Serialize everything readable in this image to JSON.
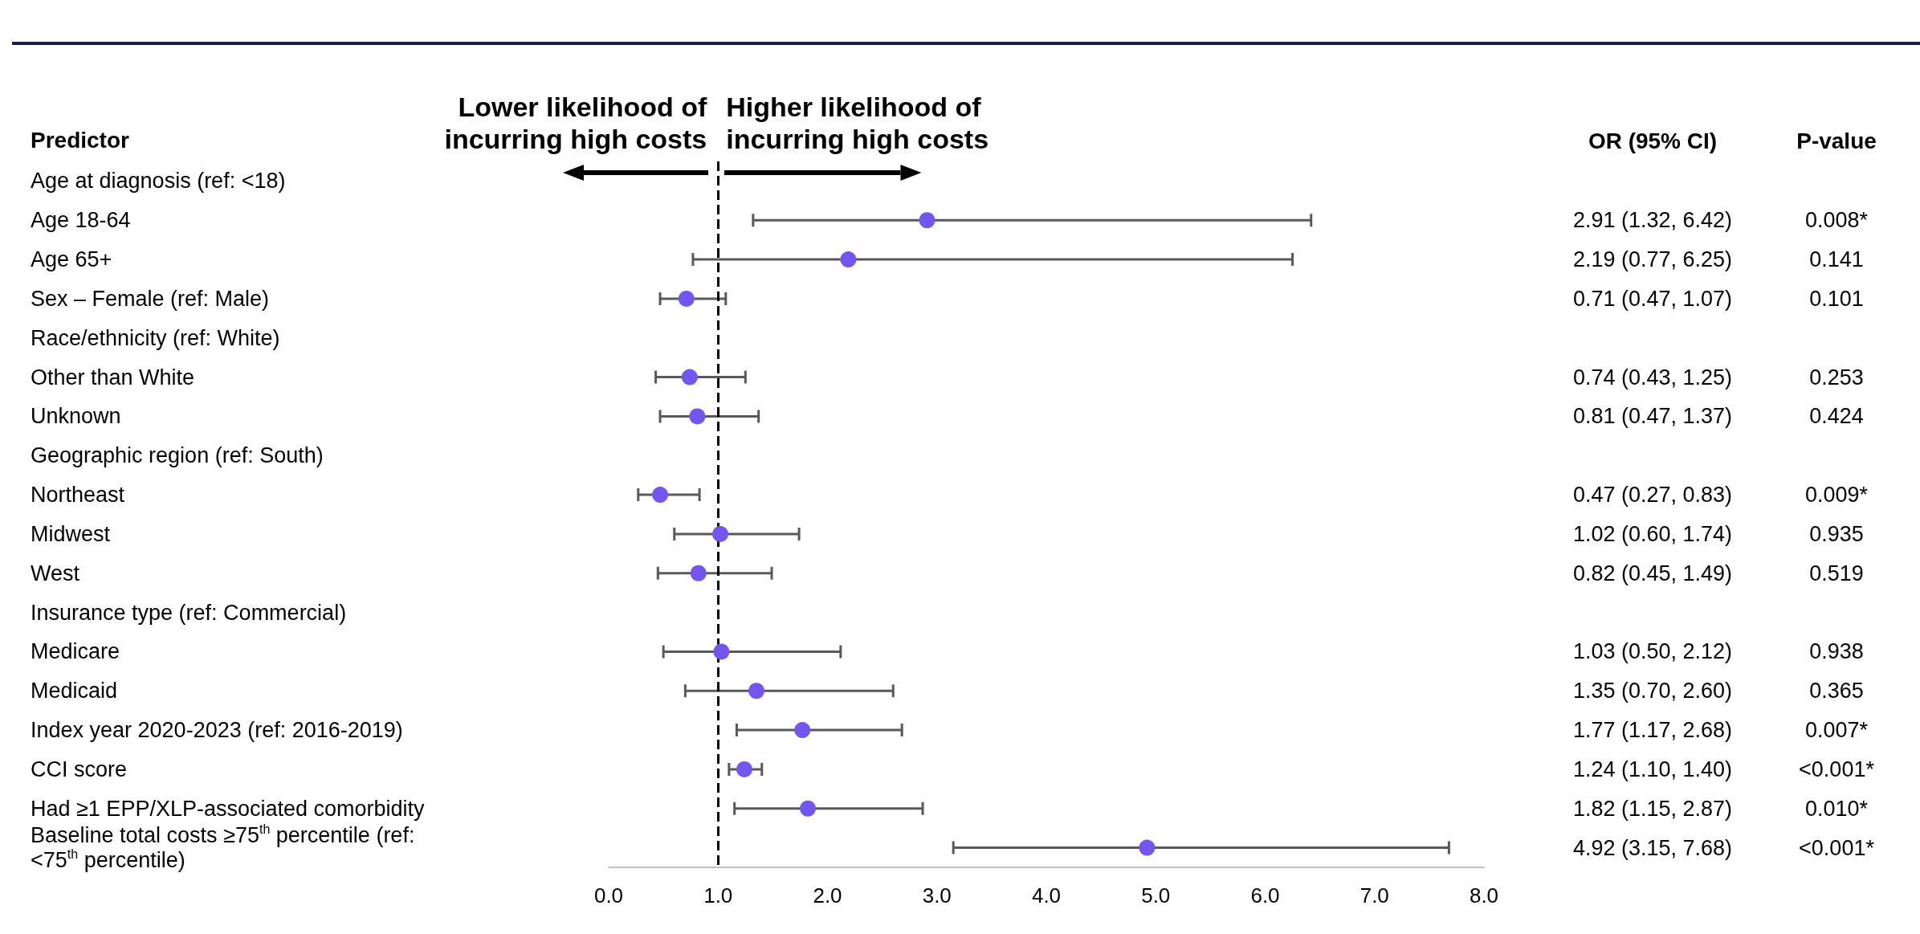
{
  "chart_data": {
    "type": "scatter",
    "orientation": "horizontal",
    "marker": "circle",
    "ylabel": "Predictor",
    "categories": [
      "Age at diagnosis (ref: <18)",
      "Age 18-64",
      "Age 65+",
      "Sex – Female (ref: Male)",
      "Race/ethnicity (ref: White)",
      "Other than White",
      "Unknown",
      "Geographic region (ref: South)",
      "Northeast",
      "Midwest",
      "West",
      "Insurance type (ref: Commercial)",
      "Medicare",
      "Medicaid",
      "Index year 2020-2023 (ref: 2016-2019)",
      "CCI score",
      "Had ≥1 EPP/XLP-associated comorbidity",
      "Baseline total costs ≥75$^{th}$ percentile (ref: <75$^{th}$ percentile)"
    ],
    "series": [
      {
        "color": "#7356f0",
        "values": [
          null,
          2.91,
          2.19,
          0.71,
          null,
          0.74,
          0.81,
          null,
          0.47,
          1.02,
          0.82,
          null,
          1.03,
          1.35,
          1.77,
          1.24,
          1.82,
          4.92
        ],
        "errors": [
          null,
          [
            1.32,
            6.42
          ],
          [
            0.77,
            6.25
          ],
          [
            0.47,
            1.07
          ],
          null,
          [
            0.43,
            1.25
          ],
          [
            0.47,
            1.37
          ],
          null,
          [
            0.27,
            0.83
          ],
          [
            0.6,
            1.74
          ],
          [
            0.45,
            1.49
          ],
          null,
          [
            0.5,
            2.12
          ],
          [
            0.7,
            2.6
          ],
          [
            1.17,
            2.68
          ],
          [
            1.1,
            1.4
          ],
          [
            1.15,
            2.87
          ],
          [
            3.15,
            7.68
          ]
        ],
        "value_labels": [
          null,
          "2.91 (1.32, 6.42)",
          "2.19 (0.77, 6.25)",
          "0.71 (0.47, 1.07)",
          null,
          "0.74 (0.43, 1.25)",
          "0.81 (0.47, 1.37)",
          null,
          "0.47 (0.27, 0.83)",
          "1.02 (0.60, 1.74)",
          "0.82 (0.45, 1.49)",
          null,
          "1.03 (0.50, 2.12)",
          "1.35 (0.70, 2.60)",
          "1.77 (1.17, 2.68)",
          "1.24 (1.10, 1.40)",
          "1.82 (1.15, 2.87)",
          "4.92 (3.15, 7.68)"
        ]
      }
    ],
    "xlim": [
      0,
      8
    ],
    "xticks": [
      {
        "value": 0,
        "label": "0.0"
      },
      {
        "value": 1,
        "label": "1.0"
      },
      {
        "value": 2,
        "label": "2.0"
      },
      {
        "value": 3,
        "label": "3.0"
      },
      {
        "value": 4,
        "label": "4.0"
      },
      {
        "value": 5,
        "label": "5.0"
      },
      {
        "value": 6,
        "label": "6.0"
      },
      {
        "value": 7,
        "label": "7.0"
      },
      {
        "value": 8,
        "label": "8.0"
      }
    ],
    "grid": false,
    "ref_lines": [
      {
        "axis": "x",
        "value": 1,
        "color": "#000000",
        "line_style": "dashed"
      }
    ],
    "annotations": [
      "Lower likelihood of incurring high costs",
      "Higher likelihood of incurring high costs",
      "OR (95% CI)",
      "P-value",
      "0.008*",
      "0.141",
      "0.101",
      "0.253",
      "0.424",
      "0.009*",
      "0.935",
      "0.519",
      "0.938",
      "0.365",
      "0.007*",
      "<0.001*",
      "0.010*",
      "<0.001*"
    ]
  }
}
